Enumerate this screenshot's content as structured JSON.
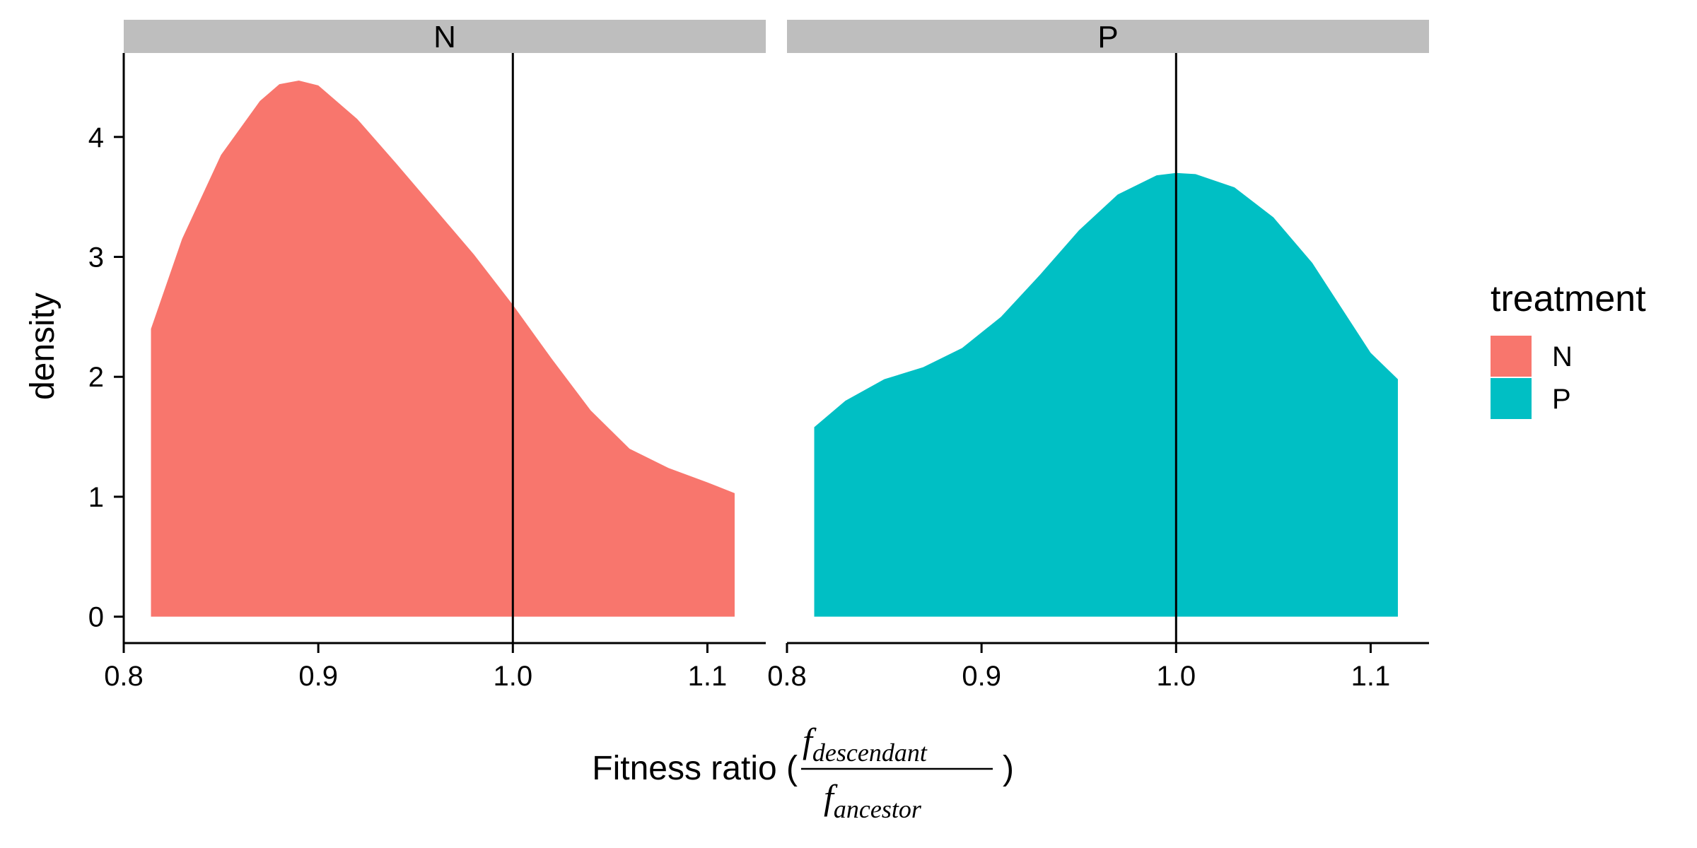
{
  "chart_data": {
    "type": "area",
    "subtype": "density",
    "xlabel_prefix": "Fitness ratio (",
    "xlabel_suffix": ")",
    "xlabel_numerator": {
      "symbol": "f",
      "subscript": "descendant"
    },
    "xlabel_denominator": {
      "symbol": "f",
      "subscript": "ancestor"
    },
    "ylabel": "density",
    "xlim": [
      0.8,
      1.13
    ],
    "ylim": [
      -0.22,
      4.7
    ],
    "xticks": [
      0.8,
      0.9,
      1.0,
      1.1
    ],
    "xtick_labels": [
      "0.8",
      "0.9",
      "1.0",
      "1.1"
    ],
    "yticks": [
      0,
      1,
      2,
      3,
      4
    ],
    "ytick_labels": [
      "0",
      "1",
      "2",
      "3",
      "4"
    ],
    "reference_line_x": 1.0,
    "legend": {
      "title": "treatment",
      "position": "right"
    },
    "facets": [
      {
        "label": "N",
        "color": "#F8766D",
        "x": [
          0.814,
          0.83,
          0.85,
          0.87,
          0.88,
          0.89,
          0.9,
          0.92,
          0.94,
          0.96,
          0.98,
          1.0,
          1.02,
          1.04,
          1.06,
          1.08,
          1.1,
          1.114
        ],
        "y": [
          2.4,
          3.15,
          3.85,
          4.3,
          4.44,
          4.47,
          4.43,
          4.15,
          3.78,
          3.4,
          3.02,
          2.6,
          2.15,
          1.72,
          1.4,
          1.24,
          1.12,
          1.03
        ]
      },
      {
        "label": "P",
        "color": "#00BFC4",
        "x": [
          0.814,
          0.83,
          0.85,
          0.87,
          0.89,
          0.91,
          0.93,
          0.95,
          0.97,
          0.99,
          1.0,
          1.01,
          1.03,
          1.05,
          1.07,
          1.09,
          1.1,
          1.114
        ],
        "y": [
          1.58,
          1.8,
          1.98,
          2.08,
          2.24,
          2.5,
          2.85,
          3.22,
          3.52,
          3.68,
          3.7,
          3.69,
          3.58,
          3.33,
          2.95,
          2.45,
          2.2,
          1.98
        ]
      }
    ]
  }
}
